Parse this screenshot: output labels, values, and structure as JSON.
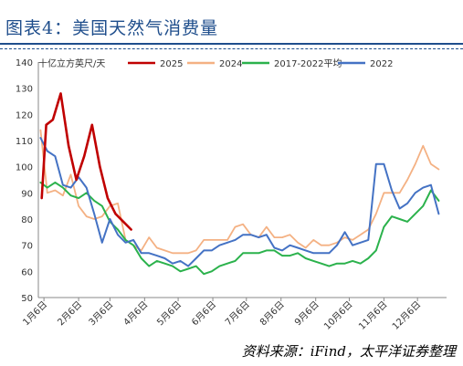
{
  "header": {
    "title": "图表4：美国天然气消费量",
    "source": "资料来源：iFind，太平洋证券整理"
  },
  "chart_data": {
    "type": "line",
    "title": "图表4：美国天然气消费量",
    "ylabel": "十亿立方英尺/天",
    "xlabel": "",
    "ylim": [
      50,
      140
    ],
    "yticks": [
      50,
      60,
      70,
      80,
      90,
      100,
      110,
      120,
      130,
      140
    ],
    "xlim": [
      1,
      366
    ],
    "month_ticks": [
      {
        "label": "1月6日",
        "day": 6
      },
      {
        "label": "2月6日",
        "day": 37
      },
      {
        "label": "3月6日",
        "day": 65
      },
      {
        "label": "4月6日",
        "day": 96
      },
      {
        "label": "5月6日",
        "day": 126
      },
      {
        "label": "6月6日",
        "day": 157
      },
      {
        "label": "7月6日",
        "day": 187
      },
      {
        "label": "8月6日",
        "day": 218
      },
      {
        "label": "9月6日",
        "day": 249
      },
      {
        "label": "10月6日",
        "day": 279
      },
      {
        "label": "11月6日",
        "day": 310
      },
      {
        "label": "12月6日",
        "day": 340
      }
    ],
    "grid": false,
    "legend_position": "top",
    "series": [
      {
        "name": "2025",
        "color": "#c00000",
        "width": 2.6,
        "points": [
          [
            4,
            88
          ],
          [
            8,
            116
          ],
          [
            14,
            118
          ],
          [
            21,
            128
          ],
          [
            28,
            108
          ],
          [
            35,
            95
          ],
          [
            42,
            104
          ],
          [
            49,
            116
          ],
          [
            56,
            100
          ],
          [
            63,
            88
          ],
          [
            70,
            82
          ],
          [
            77,
            79
          ],
          [
            84,
            76
          ]
        ]
      },
      {
        "name": "2024",
        "color": "#f4b183",
        "width": 1.8,
        "points": [
          [
            3,
            114
          ],
          [
            9,
            90
          ],
          [
            16,
            91
          ],
          [
            23,
            89
          ],
          [
            30,
            97
          ],
          [
            37,
            85
          ],
          [
            44,
            81
          ],
          [
            51,
            80
          ],
          [
            58,
            81
          ],
          [
            65,
            85
          ],
          [
            72,
            86
          ],
          [
            79,
            72
          ],
          [
            86,
            70
          ],
          [
            93,
            68
          ],
          [
            100,
            73
          ],
          [
            107,
            69
          ],
          [
            114,
            68
          ],
          [
            121,
            67
          ],
          [
            128,
            67
          ],
          [
            135,
            67
          ],
          [
            142,
            68
          ],
          [
            149,
            72
          ],
          [
            156,
            72
          ],
          [
            163,
            72
          ],
          [
            170,
            72
          ],
          [
            177,
            77
          ],
          [
            184,
            78
          ],
          [
            191,
            74
          ],
          [
            198,
            73
          ],
          [
            205,
            77
          ],
          [
            212,
            73
          ],
          [
            219,
            73
          ],
          [
            226,
            74
          ],
          [
            233,
            71
          ],
          [
            240,
            69
          ],
          [
            247,
            72
          ],
          [
            254,
            70
          ],
          [
            261,
            70
          ],
          [
            268,
            71
          ],
          [
            275,
            73
          ],
          [
            282,
            72
          ],
          [
            289,
            74
          ],
          [
            296,
            76
          ],
          [
            303,
            82
          ],
          [
            310,
            90
          ],
          [
            317,
            90
          ],
          [
            324,
            90
          ],
          [
            331,
            95
          ],
          [
            338,
            101
          ],
          [
            345,
            108
          ],
          [
            352,
            101
          ],
          [
            359,
            99
          ]
        ]
      },
      {
        "name": "2017-2022平均",
        "color": "#2bb24c",
        "width": 2.0,
        "points": [
          [
            3,
            94
          ],
          [
            9,
            92
          ],
          [
            16,
            94
          ],
          [
            23,
            92
          ],
          [
            30,
            89
          ],
          [
            37,
            88
          ],
          [
            44,
            90
          ],
          [
            51,
            87
          ],
          [
            58,
            85
          ],
          [
            65,
            79
          ],
          [
            72,
            76
          ],
          [
            79,
            72
          ],
          [
            86,
            70
          ],
          [
            93,
            65
          ],
          [
            100,
            62
          ],
          [
            107,
            64
          ],
          [
            114,
            63
          ],
          [
            121,
            62
          ],
          [
            128,
            60
          ],
          [
            135,
            61
          ],
          [
            142,
            62
          ],
          [
            149,
            59
          ],
          [
            156,
            60
          ],
          [
            163,
            62
          ],
          [
            170,
            63
          ],
          [
            177,
            64
          ],
          [
            184,
            67
          ],
          [
            191,
            67
          ],
          [
            198,
            67
          ],
          [
            205,
            68
          ],
          [
            212,
            68
          ],
          [
            219,
            66
          ],
          [
            226,
            66
          ],
          [
            233,
            67
          ],
          [
            240,
            65
          ],
          [
            247,
            64
          ],
          [
            254,
            63
          ],
          [
            261,
            62
          ],
          [
            268,
            63
          ],
          [
            275,
            63
          ],
          [
            282,
            64
          ],
          [
            289,
            63
          ],
          [
            296,
            65
          ],
          [
            303,
            68
          ],
          [
            310,
            77
          ],
          [
            317,
            81
          ],
          [
            324,
            80
          ],
          [
            331,
            79
          ],
          [
            338,
            82
          ],
          [
            345,
            85
          ],
          [
            352,
            91
          ],
          [
            359,
            87
          ]
        ]
      },
      {
        "name": "2022",
        "color": "#4472c4",
        "width": 2.0,
        "points": [
          [
            3,
            111
          ],
          [
            9,
            106
          ],
          [
            16,
            104
          ],
          [
            23,
            93
          ],
          [
            30,
            92
          ],
          [
            37,
            96
          ],
          [
            44,
            92
          ],
          [
            51,
            82
          ],
          [
            58,
            71
          ],
          [
            65,
            80
          ],
          [
            72,
            74
          ],
          [
            79,
            71
          ],
          [
            86,
            72
          ],
          [
            93,
            67
          ],
          [
            100,
            67
          ],
          [
            107,
            66
          ],
          [
            114,
            65
          ],
          [
            121,
            63
          ],
          [
            128,
            64
          ],
          [
            135,
            62
          ],
          [
            142,
            65
          ],
          [
            149,
            68
          ],
          [
            156,
            68
          ],
          [
            163,
            70
          ],
          [
            170,
            71
          ],
          [
            177,
            72
          ],
          [
            184,
            74
          ],
          [
            191,
            74
          ],
          [
            198,
            73
          ],
          [
            205,
            74
          ],
          [
            212,
            69
          ],
          [
            219,
            68
          ],
          [
            226,
            70
          ],
          [
            233,
            69
          ],
          [
            240,
            68
          ],
          [
            247,
            67
          ],
          [
            254,
            67
          ],
          [
            261,
            67
          ],
          [
            268,
            70
          ],
          [
            275,
            75
          ],
          [
            282,
            70
          ],
          [
            289,
            71
          ],
          [
            296,
            72
          ],
          [
            303,
            101
          ],
          [
            310,
            101
          ],
          [
            317,
            91
          ],
          [
            324,
            84
          ],
          [
            331,
            86
          ],
          [
            338,
            90
          ],
          [
            345,
            92
          ],
          [
            352,
            93
          ],
          [
            359,
            82
          ]
        ]
      }
    ]
  }
}
